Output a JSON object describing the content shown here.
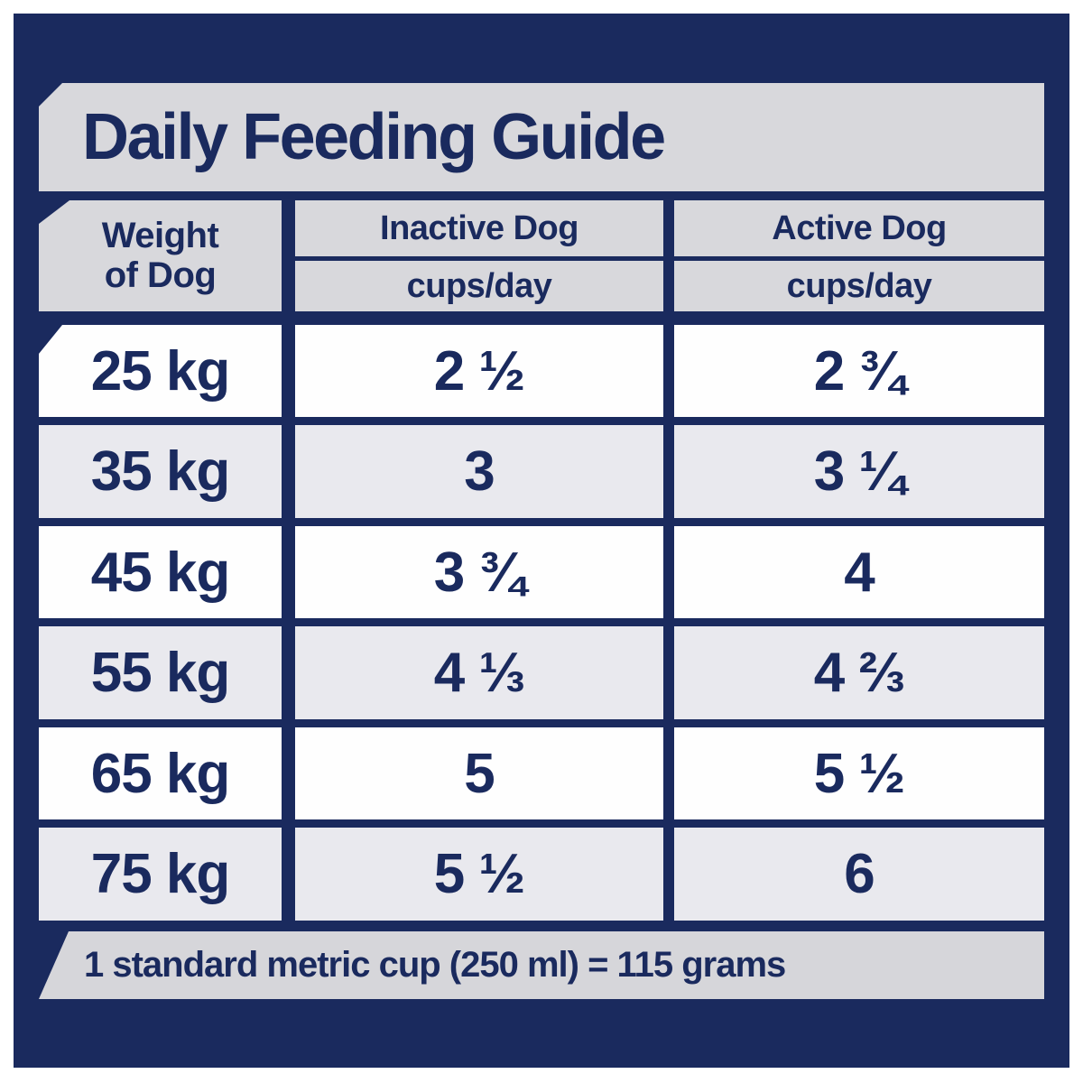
{
  "title": "Daily Feeding Guide",
  "header": {
    "weight_line1": "Weight",
    "weight_line2": "of Dog",
    "inactive_label": "Inactive Dog",
    "inactive_unit": "cups/day",
    "active_label": "Active Dog",
    "active_unit": "cups/day"
  },
  "rows": [
    {
      "weight": "25 kg",
      "inactive": "2 ½",
      "active": "2 ¾"
    },
    {
      "weight": "35 kg",
      "inactive": "3",
      "active": "3 ¼"
    },
    {
      "weight": "45 kg",
      "inactive": "3 ¾",
      "active": "4"
    },
    {
      "weight": "55 kg",
      "inactive": "4 ⅓",
      "active": "4 ⅔"
    },
    {
      "weight": "65 kg",
      "inactive": "5",
      "active": "5 ½"
    },
    {
      "weight": "75 kg",
      "inactive": "5 ½",
      "active": "6"
    }
  ],
  "footnote": "1 standard metric cup (250 ml) = 115 grams",
  "colors": {
    "navy": "#1a2a5e",
    "banner_gray": "#d8d8dc",
    "row_gray": "#e9e9ee",
    "row_white": "#fefefe",
    "footer_gray": "#d6d6da"
  },
  "chart_data": {
    "type": "table",
    "title": "Daily Feeding Guide",
    "columns": [
      "Weight of Dog",
      "Inactive Dog (cups/day)",
      "Active Dog (cups/day)"
    ],
    "rows": [
      {
        "weight_kg": 25,
        "inactive_cups_per_day": "2 1/2",
        "active_cups_per_day": "2 3/4"
      },
      {
        "weight_kg": 35,
        "inactive_cups_per_day": "3",
        "active_cups_per_day": "3 1/4"
      },
      {
        "weight_kg": 45,
        "inactive_cups_per_day": "3 3/4",
        "active_cups_per_day": "4"
      },
      {
        "weight_kg": 55,
        "inactive_cups_per_day": "4 1/3",
        "active_cups_per_day": "4 2/3"
      },
      {
        "weight_kg": 65,
        "inactive_cups_per_day": "5",
        "active_cups_per_day": "5 1/2"
      },
      {
        "weight_kg": 75,
        "inactive_cups_per_day": "5 1/2",
        "active_cups_per_day": "6"
      }
    ],
    "note": "1 standard metric cup (250 ml) = 115 grams"
  }
}
